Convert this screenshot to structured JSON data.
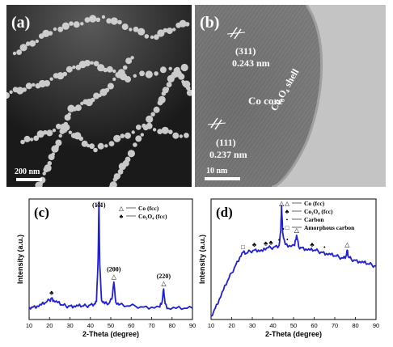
{
  "figure": {
    "panel_a": {
      "letter": "(a)",
      "scale_bar": "200 nm"
    },
    "panel_b": {
      "letter": "(b)",
      "plane_top": "(311)",
      "spacing_top": "0.243 nm",
      "plane_bottom": "(111)",
      "spacing_bottom": "0.237 nm",
      "core_label": "Co core",
      "shell_label": "Co₃O₄ shell",
      "scale_bar": "10 nm"
    }
  },
  "chart_data": [
    {
      "type": "line",
      "panel": "(c)",
      "xlabel": "2-Theta (degree)",
      "ylabel": "Intensity (a.u.)",
      "xlim": [
        10,
        90
      ],
      "xticks": [
        10,
        20,
        30,
        40,
        50,
        60,
        70,
        80,
        90
      ],
      "color": "#1f1fd8",
      "legend": [
        {
          "marker": "△",
          "label": "Co (fcc)"
        },
        {
          "marker": "♣",
          "label": "Co₃O₄ (fcc)"
        }
      ],
      "peak_labels": [
        {
          "x": 44.2,
          "plane": "(111)"
        },
        {
          "x": 51.5,
          "plane": "(200)"
        },
        {
          "x": 75.9,
          "plane": "(220)"
        }
      ],
      "markers": [
        {
          "x": 21,
          "symbol": "♣"
        },
        {
          "x": 44.2,
          "symbol": "△"
        },
        {
          "x": 51.5,
          "symbol": "△"
        },
        {
          "x": 75.9,
          "symbol": "△"
        }
      ],
      "series": [
        {
          "x": [
            10,
            12,
            14,
            16,
            18,
            20,
            21,
            22,
            24,
            26,
            28,
            30,
            32,
            34,
            36,
            38,
            40,
            42,
            43,
            43.8,
            44.2,
            44.6,
            45.5,
            47,
            49,
            50.5,
            51.5,
            52.5,
            54,
            58,
            62,
            66,
            70,
            74,
            75.2,
            75.9,
            76.6,
            78,
            82,
            86,
            90
          ],
          "y": [
            0.08,
            0.08,
            0.09,
            0.1,
            0.12,
            0.14,
            0.16,
            0.14,
            0.12,
            0.1,
            0.09,
            0.09,
            0.09,
            0.09,
            0.09,
            0.09,
            0.1,
            0.11,
            0.13,
            0.5,
            1.0,
            0.45,
            0.14,
            0.11,
            0.11,
            0.15,
            0.3,
            0.12,
            0.1,
            0.09,
            0.09,
            0.08,
            0.08,
            0.08,
            0.13,
            0.24,
            0.11,
            0.07,
            0.07,
            0.07,
            0.07
          ]
        }
      ]
    },
    {
      "type": "line",
      "panel": "(d)",
      "xlabel": "2-Theta (degree)",
      "ylabel": "Intensity (a.u.)",
      "xlim": [
        10,
        90
      ],
      "xticks": [
        10,
        20,
        30,
        40,
        50,
        60,
        70,
        80,
        90
      ],
      "color": "#1f1fd8",
      "legend": [
        {
          "marker": "△",
          "label": "Co (fcc)"
        },
        {
          "marker": "♣",
          "label": "Co₃O₄ (fcc)"
        },
        {
          "marker": "•",
          "label": "Carbon"
        },
        {
          "marker": "□",
          "label": "Amorphous carbon"
        }
      ],
      "markers": [
        {
          "x": 25.5,
          "symbol": "□"
        },
        {
          "x": 31,
          "symbol": "♣"
        },
        {
          "x": 36.5,
          "symbol": "♣"
        },
        {
          "x": 39,
          "symbol": "♣"
        },
        {
          "x": 43,
          "symbol": "•"
        },
        {
          "x": 44.2,
          "symbol": "△"
        },
        {
          "x": 45,
          "symbol": "•"
        },
        {
          "x": 47,
          "symbol": "•"
        },
        {
          "x": 51.5,
          "symbol": "△"
        },
        {
          "x": 59,
          "symbol": "♣"
        },
        {
          "x": 65,
          "symbol": "•"
        },
        {
          "x": 76,
          "symbol": "△"
        }
      ],
      "series": [
        {
          "x": [
            10,
            12,
            14,
            16,
            18,
            20,
            22,
            24,
            25.5,
            27,
            29,
            31,
            33,
            35,
            37,
            39,
            41,
            43,
            43.8,
            44.2,
            44.7,
            46,
            48,
            50.5,
            51.5,
            52.5,
            54,
            56,
            58,
            60,
            62,
            64,
            66,
            68,
            70,
            72,
            74,
            75.5,
            76,
            76.6,
            78,
            80,
            82,
            84,
            86,
            88,
            90
          ],
          "y": [
            0.0,
            0.07,
            0.15,
            0.23,
            0.31,
            0.38,
            0.45,
            0.52,
            0.56,
            0.55,
            0.57,
            0.58,
            0.58,
            0.57,
            0.6,
            0.6,
            0.61,
            0.62,
            0.75,
            0.97,
            0.74,
            0.63,
            0.62,
            0.62,
            0.71,
            0.61,
            0.6,
            0.59,
            0.58,
            0.58,
            0.57,
            0.56,
            0.55,
            0.54,
            0.53,
            0.52,
            0.51,
            0.53,
            0.58,
            0.52,
            0.5,
            0.49,
            0.48,
            0.47,
            0.46,
            0.45,
            0.44
          ]
        }
      ]
    }
  ]
}
